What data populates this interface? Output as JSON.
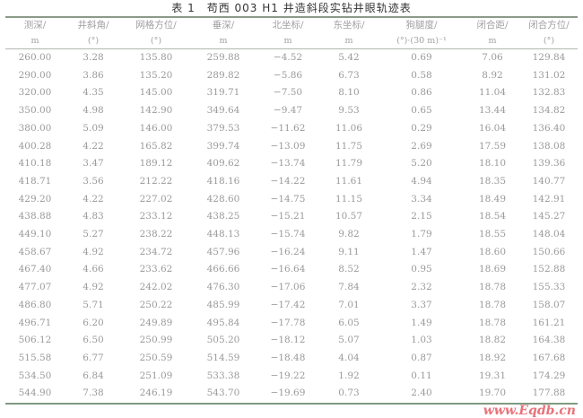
{
  "title": "表 1　苟西 003 H1 井造斜段实钻井眼轨迹表",
  "columns": [
    {
      "name": "测深/",
      "unit": "m"
    },
    {
      "name": "井斜角/",
      "unit": "(°)"
    },
    {
      "name": "网格方位/",
      "unit": "(°)"
    },
    {
      "name": "垂深/",
      "unit": "m"
    },
    {
      "name": "北坐标/",
      "unit": "m"
    },
    {
      "name": "东坐标/",
      "unit": "m"
    },
    {
      "name": "狗腿度/",
      "unit": "(°)·(30 m)⁻¹"
    },
    {
      "name": "闭合距/",
      "unit": "m"
    },
    {
      "name": "闭合方位/",
      "unit": "(°)"
    }
  ],
  "rows": [
    [
      "260.00",
      "3.28",
      "135.80",
      "259.88",
      "−4.52",
      "5.42",
      "0.69",
      "7.06",
      "129.84"
    ],
    [
      "290.00",
      "3.86",
      "135.20",
      "289.82",
      "−5.86",
      "6.73",
      "0.58",
      "8.92",
      "131.02"
    ],
    [
      "320.00",
      "4.35",
      "145.00",
      "319.71",
      "−7.50",
      "8.10",
      "0.86",
      "11.04",
      "132.83"
    ],
    [
      "350.00",
      "4.98",
      "142.90",
      "349.64",
      "−9.47",
      "9.53",
      "0.65",
      "13.44",
      "134.82"
    ],
    [
      "380.00",
      "5.09",
      "146.00",
      "379.53",
      "−11.62",
      "11.06",
      "0.29",
      "16.04",
      "136.40"
    ],
    [
      "400.28",
      "4.22",
      "165.82",
      "399.74",
      "−13.09",
      "11.75",
      "2.69",
      "17.59",
      "138.08"
    ],
    [
      "410.18",
      "3.47",
      "189.12",
      "409.62",
      "−13.74",
      "11.79",
      "5.20",
      "18.10",
      "139.36"
    ],
    [
      "418.71",
      "3.56",
      "212.22",
      "418.16",
      "−14.22",
      "11.61",
      "4.94",
      "18.35",
      "140.77"
    ],
    [
      "429.20",
      "4.22",
      "227.02",
      "428.60",
      "−14.75",
      "11.15",
      "3.34",
      "18.49",
      "142.91"
    ],
    [
      "438.88",
      "4.83",
      "233.12",
      "438.25",
      "−15.21",
      "10.57",
      "2.15",
      "18.54",
      "145.27"
    ],
    [
      "449.10",
      "5.27",
      "238.22",
      "448.13",
      "−15.74",
      "9.82",
      "1.79",
      "18.55",
      "148.04"
    ],
    [
      "458.67",
      "4.92",
      "234.72",
      "457.96",
      "−16.24",
      "9.11",
      "1.47",
      "18.60",
      "150.66"
    ],
    [
      "467.40",
      "4.66",
      "233.62",
      "466.66",
      "−16.64",
      "8.52",
      "0.95",
      "18.69",
      "152.88"
    ],
    [
      "477.07",
      "4.92",
      "242.02",
      "476.30",
      "−17.06",
      "7.84",
      "2.32",
      "18.78",
      "155.33"
    ],
    [
      "486.80",
      "5.71",
      "250.22",
      "485.99",
      "−17.42",
      "7.01",
      "3.37",
      "18.78",
      "158.07"
    ],
    [
      "496.71",
      "6.20",
      "249.89",
      "495.84",
      "−17.78",
      "6.05",
      "1.49",
      "18.78",
      "161.21"
    ],
    [
      "506.12",
      "6.50",
      "250.99",
      "505.20",
      "−18.12",
      "5.07",
      "1.03",
      "18.82",
      "164.38"
    ],
    [
      "515.58",
      "6.77",
      "250.59",
      "514.59",
      "−18.48",
      "4.04",
      "0.87",
      "18.92",
      "167.68"
    ],
    [
      "534.50",
      "6.84",
      "251.09",
      "533.38",
      "−19.22",
      "1.92",
      "0.11",
      "19.31",
      "174.29"
    ],
    [
      "544.90",
      "7.38",
      "246.19",
      "543.70",
      "−19.69",
      "0.73",
      "2.40",
      "19.70",
      "177.88"
    ]
  ],
  "watermark": "www.Eqdb.cn"
}
